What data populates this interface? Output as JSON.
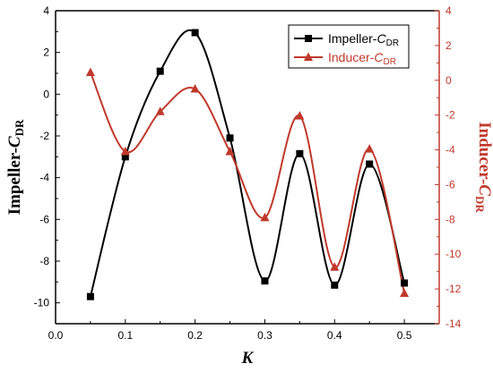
{
  "chart_data": {
    "type": "line",
    "xlabel": "K",
    "xlim": [
      0.0,
      0.55
    ],
    "xticks": [
      "0.0",
      "0.1",
      "0.2",
      "0.3",
      "0.4",
      "0.5"
    ],
    "y_left": {
      "label_main": "Impeller-",
      "label_var": "C",
      "label_sub": "DR",
      "ylim": [
        -11,
        4
      ],
      "ticks": [
        "-10",
        "-8",
        "-6",
        "-4",
        "-2",
        "0",
        "2",
        "4"
      ],
      "color": "#000000"
    },
    "y_right": {
      "label_main": "Inducer-",
      "label_var": "C",
      "label_sub": "DR",
      "ylim": [
        -14,
        4
      ],
      "ticks": [
        "-14",
        "-12",
        "-10",
        "-8",
        "-6",
        "-4",
        "-2",
        "0",
        "2",
        "4"
      ],
      "color": "#c0392b"
    },
    "series": [
      {
        "name_main": "Impeller-",
        "name_var": "C",
        "name_sub": "DR",
        "axis": "left",
        "color": "#000000",
        "marker": "square",
        "x": [
          0.05,
          0.1,
          0.15,
          0.2,
          0.25,
          0.3,
          0.35,
          0.4,
          0.45,
          0.5
        ],
        "y": [
          -9.7,
          -3.0,
          1.1,
          2.95,
          -2.1,
          -8.95,
          -2.85,
          -9.15,
          -3.35,
          -9.05
        ]
      },
      {
        "name_main": "Inducer-",
        "name_var": "C",
        "name_sub": "DR",
        "axis": "right",
        "color": "#c0392b",
        "marker": "triangle",
        "x": [
          0.05,
          0.1,
          0.15,
          0.2,
          0.25,
          0.3,
          0.35,
          0.4,
          0.45,
          0.5
        ],
        "y": [
          0.45,
          -4.1,
          -1.8,
          -0.5,
          -4.1,
          -7.9,
          -2.05,
          -10.75,
          -3.95,
          -12.25
        ]
      }
    ],
    "legend_position": "top-right"
  }
}
